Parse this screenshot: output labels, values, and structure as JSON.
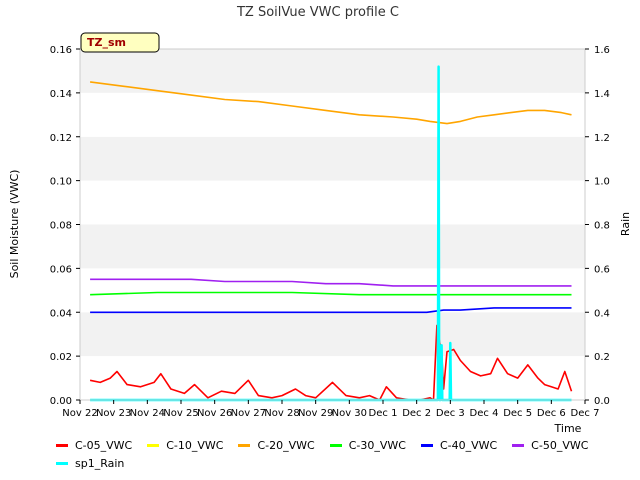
{
  "chart_data": {
    "type": "line",
    "title": "TZ SoilVue VWC profile C",
    "site_label": "TZ_sm",
    "xlabel": "Time",
    "ylabel": "Soil Moisture (VWC)",
    "ylabel_right": "Rain",
    "xlim": [
      0,
      15
    ],
    "ylim": [
      0,
      0.16
    ],
    "ylim_right": [
      0,
      1.6
    ],
    "x_ticks": [
      0,
      1,
      2,
      3,
      4,
      5,
      6,
      7,
      8,
      9,
      10,
      11,
      12,
      13,
      14,
      15
    ],
    "x_tick_labels": [
      "Nov 22",
      "Nov 23",
      "Nov 24",
      "Nov 25",
      "Nov 26",
      "Nov 27",
      "Nov 28",
      "Nov 29",
      "Nov 30",
      "Dec 1",
      "Dec 2",
      "Dec 3",
      "Dec 4",
      "Dec 5",
      "Dec 6",
      "Dec 7"
    ],
    "y_ticks": [
      0,
      0.02,
      0.04,
      0.06,
      0.08,
      0.1,
      0.12,
      0.14,
      0.16
    ],
    "y_tick_labels": [
      "0.00",
      "0.02",
      "0.04",
      "0.06",
      "0.08",
      "0.10",
      "0.12",
      "0.14",
      "0.16"
    ],
    "y_ticks_right": [
      0,
      0.2,
      0.4,
      0.6,
      0.8,
      1.0,
      1.2,
      1.4,
      1.6
    ],
    "y_tick_labels_right": [
      "0.0",
      "0.2",
      "0.4",
      "0.6",
      "0.8",
      "1.0",
      "1.2",
      "1.4",
      "1.6"
    ],
    "band_colors": [
      "#f2f2f2",
      "#ffffff"
    ],
    "series": [
      {
        "name": "C-05_VWC",
        "color": "#ff0000",
        "axis": "left",
        "x": [
          0.3,
          0.6,
          0.9,
          1.1,
          1.4,
          1.8,
          2.2,
          2.4,
          2.7,
          3.1,
          3.4,
          3.8,
          4.2,
          4.6,
          5.0,
          5.3,
          5.7,
          6.0,
          6.4,
          6.7,
          7.0,
          7.5,
          7.9,
          8.3,
          8.6,
          8.9,
          9.1,
          9.4,
          9.8,
          10.1,
          10.4,
          10.5,
          10.6,
          10.75,
          10.8,
          10.9,
          11.1,
          11.3,
          11.6,
          11.9,
          12.2,
          12.4,
          12.7,
          13.0,
          13.3,
          13.6,
          13.8,
          14.0,
          14.2,
          14.4,
          14.6
        ],
        "y": [
          0.009,
          0.008,
          0.01,
          0.013,
          0.007,
          0.006,
          0.008,
          0.012,
          0.005,
          0.003,
          0.007,
          0.001,
          0.004,
          0.003,
          0.009,
          0.002,
          0.001,
          0.002,
          0.005,
          0.002,
          0.001,
          0.008,
          0.002,
          0.001,
          0.002,
          0.0,
          0.006,
          0.001,
          0.0,
          0.0,
          0.001,
          0.0,
          0.034,
          0.02,
          0.005,
          0.022,
          0.023,
          0.018,
          0.013,
          0.011,
          0.012,
          0.019,
          0.012,
          0.01,
          0.016,
          0.01,
          0.007,
          0.006,
          0.005,
          0.013,
          0.004
        ]
      },
      {
        "name": "C-10_VWC",
        "color": "#ffff00",
        "axis": "left",
        "x": [
          0.3,
          14.6
        ],
        "y": [
          0.0,
          0.0
        ]
      },
      {
        "name": "C-20_VWC",
        "color": "#ffa500",
        "axis": "left",
        "x": [
          0.3,
          1.3,
          2.3,
          3.3,
          4.3,
          5.3,
          6.3,
          7.3,
          8.3,
          9.3,
          10.0,
          10.4,
          10.9,
          11.3,
          11.8,
          12.3,
          12.8,
          13.3,
          13.8,
          14.3,
          14.6
        ],
        "y": [
          0.145,
          0.143,
          0.141,
          0.139,
          0.137,
          0.136,
          0.134,
          0.132,
          0.13,
          0.129,
          0.128,
          0.127,
          0.126,
          0.127,
          0.129,
          0.13,
          0.131,
          0.132,
          0.132,
          0.131,
          0.13
        ]
      },
      {
        "name": "C-30_VWC",
        "color": "#00ff00",
        "axis": "left",
        "x": [
          0.3,
          2.3,
          4.3,
          6.3,
          8.3,
          9.3,
          10.3,
          11.3,
          12.3,
          13.3,
          14.6
        ],
        "y": [
          0.048,
          0.049,
          0.049,
          0.049,
          0.048,
          0.048,
          0.048,
          0.048,
          0.048,
          0.048,
          0.048
        ]
      },
      {
        "name": "C-40_VWC",
        "color": "#0000ff",
        "axis": "left",
        "x": [
          0.3,
          2.3,
          4.3,
          6.3,
          8.3,
          9.3,
          10.3,
          10.8,
          11.3,
          12.3,
          13.3,
          14.6
        ],
        "y": [
          0.04,
          0.04,
          0.04,
          0.04,
          0.04,
          0.04,
          0.04,
          0.041,
          0.041,
          0.042,
          0.042,
          0.042
        ]
      },
      {
        "name": "C-50_VWC",
        "color": "#a020f0",
        "axis": "left",
        "x": [
          0.3,
          1.3,
          2.3,
          3.3,
          4.3,
          5.3,
          6.3,
          7.3,
          8.3,
          9.3,
          10.3,
          11.3,
          12.3,
          13.3,
          14.6
        ],
        "y": [
          0.055,
          0.055,
          0.055,
          0.055,
          0.054,
          0.054,
          0.054,
          0.053,
          0.053,
          0.052,
          0.052,
          0.052,
          0.052,
          0.052,
          0.052
        ]
      },
      {
        "name": "sp1_Rain",
        "color": "#00ffff",
        "axis": "right",
        "x": [
          0.3,
          10.63,
          10.65,
          10.67,
          10.72,
          10.74,
          10.76,
          10.98,
          11.0,
          11.02,
          14.6
        ],
        "y": [
          0.0,
          0.0,
          1.52,
          0.0,
          0.0,
          0.25,
          0.0,
          0.0,
          0.26,
          0.0,
          0.0
        ]
      }
    ],
    "legend_position": "bottom",
    "grid": false
  }
}
